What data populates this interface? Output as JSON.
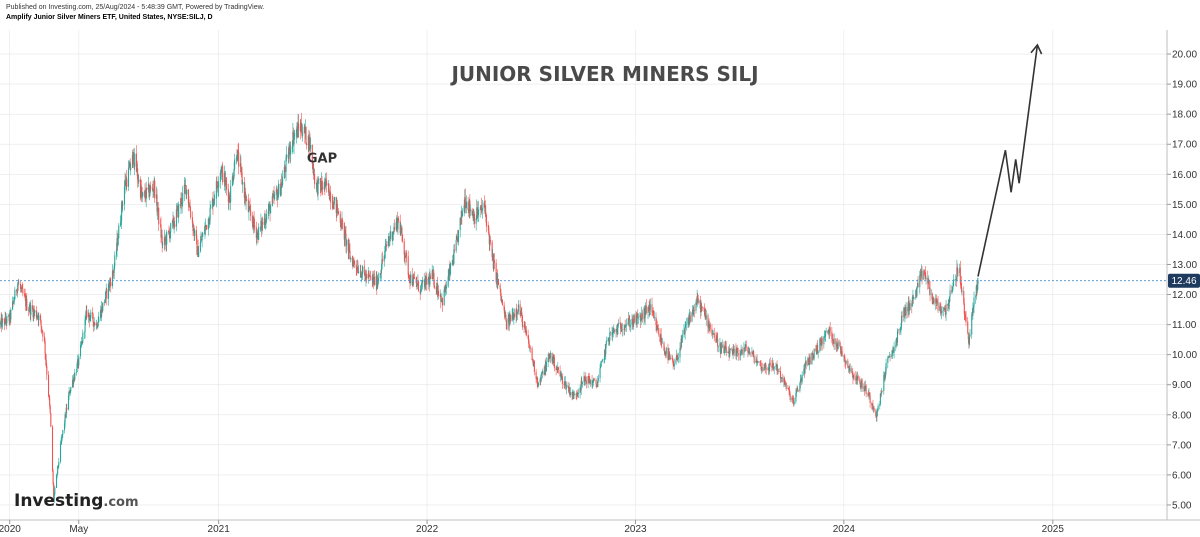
{
  "header": {
    "published": "Published on Investing.com, 25/Aug/2024 - 5:48:39 GMT, Powered by TradingView.",
    "instrument": "Amplify Junior Silver Miners ETF, United States, NYSE:SILJ, D"
  },
  "logo": {
    "main": "Investing",
    "sub": ".com"
  },
  "colors": {
    "up": "#26a69a",
    "down": "#ef5350",
    "arrow": "#333333",
    "price_badge": "#1e3a5f",
    "grid": "#e6e6e6"
  },
  "chart_data": {
    "type": "candlestick",
    "title": "JUNIOR SILVER MINERS SILJ",
    "annotation": {
      "text": "GAP",
      "x": "2021-06",
      "y": 16.4
    },
    "x_ticks": [
      {
        "label": "2020",
        "date": "2020-01-01"
      },
      {
        "label": "May",
        "date": "2020-05-01"
      },
      {
        "label": "2021",
        "date": "2021-01-01"
      },
      {
        "label": "2022",
        "date": "2022-01-01"
      },
      {
        "label": "2023",
        "date": "2023-01-01"
      },
      {
        "label": "2024",
        "date": "2024-01-01"
      },
      {
        "label": "2025",
        "date": "2025-01-01"
      }
    ],
    "y_ticks": [
      "5.00",
      "6.00",
      "7.00",
      "8.00",
      "9.00",
      "10.00",
      "11.00",
      "12.00",
      "13.00",
      "14.00",
      "15.00",
      "16.00",
      "17.00",
      "18.00",
      "19.00",
      "20.00"
    ],
    "ylim": [
      4.5,
      20.8
    ],
    "xlim": [
      "2019-12-15",
      "2025-07-20"
    ],
    "current_price": {
      "value": 12.46,
      "label": "12.46"
    },
    "price_path": [
      [
        "2019-12-15",
        11.0
      ],
      [
        "2020-01-01",
        11.2
      ],
      [
        "2020-01-15",
        12.4
      ],
      [
        "2020-02-01",
        11.6
      ],
      [
        "2020-02-20",
        11.3
      ],
      [
        "2020-03-01",
        10.6
      ],
      [
        "2020-03-12",
        8.0
      ],
      [
        "2020-03-18",
        5.2
      ],
      [
        "2020-04-01",
        7.2
      ],
      [
        "2020-04-15",
        8.8
      ],
      [
        "2020-05-01",
        9.8
      ],
      [
        "2020-05-15",
        11.4
      ],
      [
        "2020-06-01",
        11.0
      ],
      [
        "2020-06-15",
        11.8
      ],
      [
        "2020-07-01",
        12.8
      ],
      [
        "2020-07-20",
        15.6
      ],
      [
        "2020-08-05",
        16.6
      ],
      [
        "2020-08-20",
        15.2
      ],
      [
        "2020-09-10",
        15.6
      ],
      [
        "2020-09-25",
        13.6
      ],
      [
        "2020-10-15",
        14.4
      ],
      [
        "2020-11-05",
        15.6
      ],
      [
        "2020-11-25",
        13.4
      ],
      [
        "2020-12-15",
        14.6
      ],
      [
        "2021-01-05",
        16.2
      ],
      [
        "2021-01-20",
        15.2
      ],
      [
        "2021-02-01",
        16.8
      ],
      [
        "2021-02-20",
        14.9
      ],
      [
        "2021-03-10",
        14.0
      ],
      [
        "2021-04-01",
        14.9
      ],
      [
        "2021-04-20",
        15.6
      ],
      [
        "2021-05-10",
        17.2
      ],
      [
        "2021-05-25",
        17.6
      ],
      [
        "2021-06-10",
        17.0
      ],
      [
        "2021-06-20",
        15.6
      ],
      [
        "2021-07-10",
        15.6
      ],
      [
        "2021-08-01",
        14.6
      ],
      [
        "2021-08-20",
        13.2
      ],
      [
        "2021-09-15",
        12.6
      ],
      [
        "2021-10-05",
        12.4
      ],
      [
        "2021-10-25",
        13.8
      ],
      [
        "2021-11-12",
        14.5
      ],
      [
        "2021-12-01",
        12.6
      ],
      [
        "2021-12-20",
        12.2
      ],
      [
        "2022-01-10",
        12.6
      ],
      [
        "2022-01-28",
        11.8
      ],
      [
        "2022-02-20",
        13.5
      ],
      [
        "2022-03-08",
        15.2
      ],
      [
        "2022-03-25",
        14.6
      ],
      [
        "2022-04-12",
        14.9
      ],
      [
        "2022-04-25",
        13.2
      ],
      [
        "2022-05-05",
        12.4
      ],
      [
        "2022-05-20",
        11.0
      ],
      [
        "2022-06-10",
        11.6
      ],
      [
        "2022-06-30",
        10.2
      ],
      [
        "2022-07-15",
        9.0
      ],
      [
        "2022-08-05",
        10.0
      ],
      [
        "2022-08-25",
        9.2
      ],
      [
        "2022-09-15",
        8.6
      ],
      [
        "2022-10-05",
        9.2
      ],
      [
        "2022-10-25",
        9.0
      ],
      [
        "2022-11-15",
        10.6
      ],
      [
        "2022-12-10",
        11.0
      ],
      [
        "2023-01-10",
        11.2
      ],
      [
        "2023-01-25",
        11.6
      ],
      [
        "2023-02-20",
        10.2
      ],
      [
        "2023-03-10",
        9.6
      ],
      [
        "2023-04-01",
        11.0
      ],
      [
        "2023-04-20",
        11.8
      ],
      [
        "2023-05-10",
        11.0
      ],
      [
        "2023-05-30",
        10.2
      ],
      [
        "2023-06-20",
        10.0
      ],
      [
        "2023-07-15",
        10.2
      ],
      [
        "2023-08-10",
        9.6
      ],
      [
        "2023-09-05",
        9.6
      ],
      [
        "2023-10-05",
        8.4
      ],
      [
        "2023-10-25",
        9.6
      ],
      [
        "2023-11-15",
        10.2
      ],
      [
        "2023-12-05",
        10.8
      ],
      [
        "2023-12-25",
        10.2
      ],
      [
        "2024-01-15",
        9.4
      ],
      [
        "2024-02-10",
        8.8
      ],
      [
        "2024-02-28",
        8.0
      ],
      [
        "2024-03-15",
        9.6
      ],
      [
        "2024-04-01",
        10.4
      ],
      [
        "2024-04-15",
        11.4
      ],
      [
        "2024-05-01",
        11.8
      ],
      [
        "2024-05-20",
        12.8
      ],
      [
        "2024-06-05",
        11.8
      ],
      [
        "2024-06-25",
        11.4
      ],
      [
        "2024-07-10",
        12.2
      ],
      [
        "2024-07-20",
        13.0
      ],
      [
        "2024-07-30",
        11.4
      ],
      [
        "2024-08-07",
        10.5
      ],
      [
        "2024-08-15",
        11.6
      ],
      [
        "2024-08-23",
        12.46
      ]
    ],
    "projection": [
      [
        "2024-08-23",
        12.6
      ],
      [
        "2024-10-10",
        16.8
      ],
      [
        "2024-10-20",
        15.4
      ],
      [
        "2024-10-28",
        16.5
      ],
      [
        "2024-11-03",
        15.7
      ],
      [
        "2024-12-05",
        20.3
      ]
    ]
  }
}
